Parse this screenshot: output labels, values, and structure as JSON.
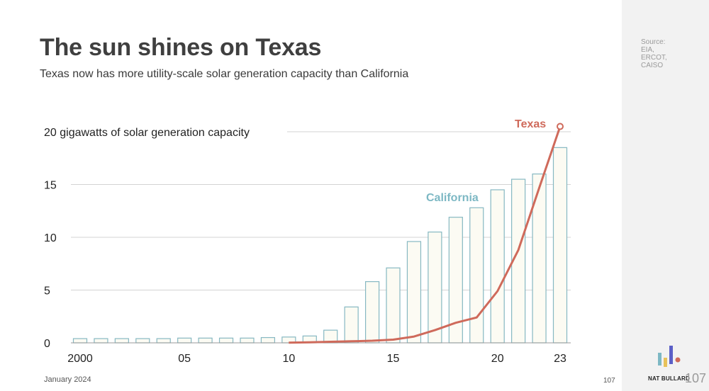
{
  "slide": {
    "title": "The sun shines on Texas",
    "subtitle": "Texas now has more utility-scale solar generation capacity than California",
    "source_lines": [
      "Source:",
      "EIA,",
      "ERCOT,",
      "CAISO"
    ],
    "date": "January 2024",
    "page_number": "107",
    "brand": "NAT BULLARD",
    "brand_page": "107",
    "colors": {
      "texas": "#cf6a5b",
      "california_label": "#7db8c4",
      "bar_stroke": "#86b8c2",
      "bar_fill": "#fcfbf3",
      "gridline": "#d3d3d3",
      "title": "#3f3f3f"
    }
  },
  "chart_data": {
    "type": "bar+line",
    "title": "The sun shines on Texas",
    "ylabel": "gigawatts of solar generation capacity",
    "ylim": [
      0,
      20
    ],
    "y_ticks": [
      0,
      5,
      10,
      15,
      20
    ],
    "y_tick_labels": [
      "0",
      "5",
      "10",
      "15",
      "20 gigawatts of solar generation capacity"
    ],
    "x_ticks": [
      2000,
      2005,
      2010,
      2015,
      2020,
      2023
    ],
    "x_tick_labels": [
      "2000",
      "05",
      "10",
      "15",
      "20",
      "23"
    ],
    "series": [
      {
        "name": "California",
        "type": "bar",
        "x": [
          2000,
          2001,
          2002,
          2003,
          2004,
          2005,
          2006,
          2007,
          2008,
          2009,
          2010,
          2011,
          2012,
          2013,
          2014,
          2015,
          2016,
          2017,
          2018,
          2019,
          2020,
          2021,
          2022,
          2023
        ],
        "values": [
          0.4,
          0.4,
          0.4,
          0.4,
          0.4,
          0.45,
          0.45,
          0.45,
          0.45,
          0.5,
          0.55,
          0.65,
          1.2,
          3.4,
          5.8,
          7.1,
          9.6,
          10.5,
          11.9,
          12.8,
          14.5,
          15.5,
          16.0,
          18.5
        ]
      },
      {
        "name": "Texas",
        "type": "line",
        "x": [
          2010,
          2011,
          2012,
          2013,
          2014,
          2015,
          2016,
          2017,
          2018,
          2019,
          2020,
          2021,
          2022,
          2023
        ],
        "values": [
          0.02,
          0.05,
          0.1,
          0.15,
          0.2,
          0.3,
          0.6,
          1.2,
          1.9,
          2.4,
          4.9,
          8.8,
          14.7,
          20.5
        ]
      }
    ]
  }
}
